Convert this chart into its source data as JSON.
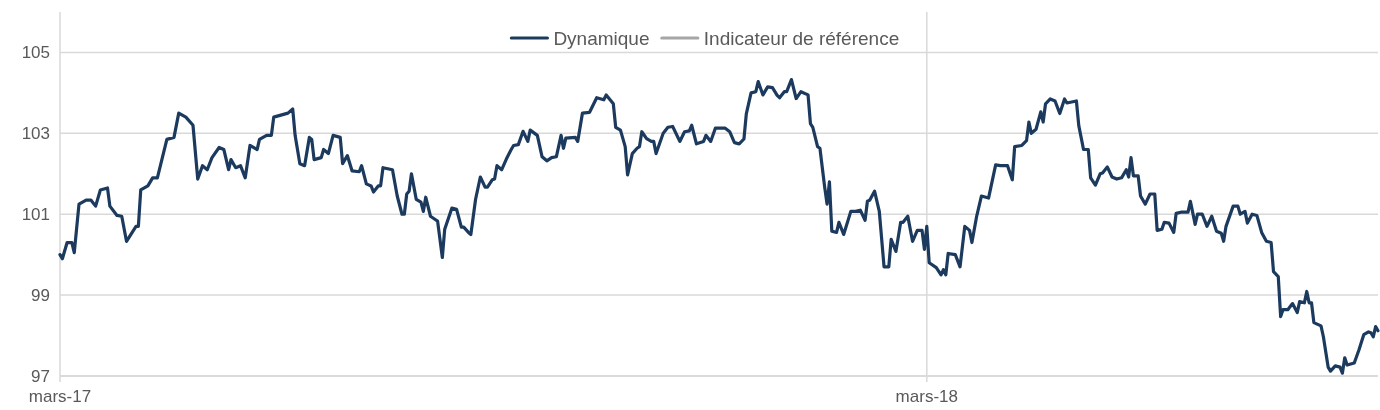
{
  "chart_data": {
    "type": "line",
    "xlim": [
      "2017-03-01",
      "2018-09-07"
    ],
    "xticks": [
      {
        "value": "2017-03-01",
        "label": "mars-17"
      },
      {
        "value": "2018-03-01",
        "label": "mars-18"
      }
    ],
    "ylim": [
      97,
      106
    ],
    "yticks": [
      97,
      99,
      101,
      103,
      105
    ],
    "grid": true,
    "legend": "top",
    "line_style": "solid",
    "marker": "none",
    "series": [
      {
        "name": "Dynamique",
        "color": "#1c3a5e",
        "x": [
          "2017-03-01",
          "2017-03-02",
          "2017-03-04",
          "2017-03-06",
          "2017-03-07",
          "2017-03-09",
          "2017-03-12",
          "2017-03-14",
          "2017-03-16",
          "2017-03-18",
          "2017-03-21",
          "2017-03-22",
          "2017-03-25",
          "2017-03-27",
          "2017-03-29",
          "2017-04-02",
          "2017-04-03",
          "2017-04-04",
          "2017-04-07",
          "2017-04-09",
          "2017-04-11",
          "2017-04-15",
          "2017-04-18",
          "2017-04-20",
          "2017-04-23",
          "2017-04-26",
          "2017-04-28",
          "2017-04-30",
          "2017-05-02",
          "2017-05-04",
          "2017-05-07",
          "2017-05-09",
          "2017-05-11",
          "2017-05-12",
          "2017-05-14",
          "2017-05-16",
          "2017-05-18",
          "2017-05-20",
          "2017-05-23",
          "2017-05-24",
          "2017-05-27",
          "2017-05-29",
          "2017-05-30",
          "2017-06-02",
          "2017-06-05",
          "2017-06-07",
          "2017-06-08",
          "2017-06-10",
          "2017-06-12",
          "2017-06-14",
          "2017-06-15",
          "2017-06-16",
          "2017-06-19",
          "2017-06-20",
          "2017-06-22",
          "2017-06-24",
          "2017-06-27",
          "2017-06-28",
          "2017-06-30",
          "2017-07-02",
          "2017-07-05",
          "2017-07-06",
          "2017-07-08",
          "2017-07-10",
          "2017-07-11",
          "2017-07-13",
          "2017-07-14",
          "2017-07-15",
          "2017-07-19",
          "2017-07-21",
          "2017-07-23",
          "2017-07-24",
          "2017-07-25",
          "2017-07-26",
          "2017-07-27",
          "2017-07-29",
          "2017-07-31",
          "2017-08-01",
          "2017-08-02",
          "2017-08-04",
          "2017-08-06",
          "2017-08-07",
          "2017-08-09",
          "2017-08-10",
          "2017-08-13",
          "2017-08-15",
          "2017-08-17",
          "2017-08-18",
          "2017-08-20",
          "2017-08-21",
          "2017-08-23",
          "2017-08-25",
          "2017-08-27",
          "2017-08-28",
          "2017-08-30",
          "2017-08-31",
          "2017-09-01",
          "2017-09-03",
          "2017-09-05",
          "2017-09-07",
          "2017-09-08",
          "2017-09-10",
          "2017-09-12",
          "2017-09-14",
          "2017-09-15",
          "2017-09-18",
          "2017-09-20",
          "2017-09-22",
          "2017-09-24",
          "2017-09-26",
          "2017-09-28",
          "2017-09-29",
          "2017-09-30",
          "2017-10-04",
          "2017-10-05",
          "2017-10-07",
          "2017-10-10",
          "2017-10-13",
          "2017-10-16",
          "2017-10-17",
          "2017-10-20",
          "2017-10-21",
          "2017-10-23",
          "2017-10-25",
          "2017-10-26",
          "2017-10-28",
          "2017-10-30",
          "2017-10-31",
          "2017-11-01",
          "2017-11-03",
          "2017-11-05",
          "2017-11-06",
          "2017-11-07",
          "2017-11-10",
          "2017-11-12",
          "2017-11-14",
          "2017-11-17",
          "2017-11-19",
          "2017-11-21",
          "2017-11-22",
          "2017-11-24",
          "2017-11-27",
          "2017-11-28",
          "2017-11-30",
          "2017-12-02",
          "2017-12-06",
          "2017-12-08",
          "2017-12-10",
          "2017-12-12",
          "2017-12-14",
          "2017-12-15",
          "2017-12-17",
          "2017-12-19",
          "2017-12-20",
          "2017-12-22",
          "2017-12-24",
          "2017-12-26",
          "2017-12-28",
          "2017-12-29",
          "2017-12-31",
          "2018-01-01",
          "2018-01-03",
          "2018-01-05",
          "2018-01-07",
          "2018-01-10",
          "2018-01-11",
          "2018-01-12",
          "2018-01-14",
          "2018-01-15",
          "2018-01-17",
          "2018-01-18",
          "2018-01-19",
          "2018-01-20",
          "2018-01-22",
          "2018-01-23",
          "2018-01-25",
          "2018-01-28",
          "2018-01-30",
          "2018-02-01",
          "2018-02-03",
          "2018-02-04",
          "2018-02-05",
          "2018-02-07",
          "2018-02-09",
          "2018-02-11",
          "2018-02-13",
          "2018-02-14",
          "2018-02-16",
          "2018-02-18",
          "2018-02-19",
          "2018-02-21",
          "2018-02-23",
          "2018-02-25",
          "2018-02-27",
          "2018-02-28",
          "2018-03-01",
          "2018-03-02",
          "2018-03-05",
          "2018-03-07",
          "2018-03-08",
          "2018-03-09",
          "2018-03-10",
          "2018-03-13",
          "2018-03-15",
          "2018-03-17",
          "2018-03-19",
          "2018-03-20",
          "2018-03-22",
          "2018-03-24",
          "2018-03-27",
          "2018-03-30",
          "2018-04-01",
          "2018-04-04",
          "2018-04-06",
          "2018-04-07",
          "2018-04-10",
          "2018-04-12",
          "2018-04-13",
          "2018-04-14",
          "2018-04-16",
          "2018-04-18",
          "2018-04-19",
          "2018-04-20",
          "2018-04-22",
          "2018-04-24",
          "2018-04-26",
          "2018-04-28",
          "2018-04-29",
          "2018-05-03",
          "2018-05-04",
          "2018-05-06",
          "2018-05-08",
          "2018-05-09",
          "2018-05-11",
          "2018-05-13",
          "2018-05-14",
          "2018-05-16",
          "2018-05-18",
          "2018-05-20",
          "2018-05-22",
          "2018-05-24",
          "2018-05-25",
          "2018-05-26",
          "2018-05-27",
          "2018-05-29",
          "2018-05-30",
          "2018-06-01",
          "2018-06-03",
          "2018-06-05",
          "2018-06-06",
          "2018-06-08",
          "2018-06-09",
          "2018-06-11",
          "2018-06-13",
          "2018-06-14",
          "2018-06-16",
          "2018-06-19",
          "2018-06-20",
          "2018-06-22",
          "2018-06-23",
          "2018-06-25",
          "2018-06-27",
          "2018-06-29",
          "2018-07-01",
          "2018-07-03",
          "2018-07-04",
          "2018-07-05",
          "2018-07-08",
          "2018-07-10",
          "2018-07-11",
          "2018-07-13",
          "2018-07-14",
          "2018-07-16",
          "2018-07-18",
          "2018-07-20",
          "2018-07-22",
          "2018-07-24",
          "2018-07-25",
          "2018-07-27",
          "2018-07-28",
          "2018-07-29",
          "2018-07-31",
          "2018-08-02",
          "2018-08-04",
          "2018-08-05",
          "2018-08-07",
          "2018-08-08",
          "2018-08-09",
          "2018-08-10",
          "2018-08-11",
          "2018-08-14",
          "2018-08-15",
          "2018-08-17",
          "2018-08-18",
          "2018-08-20",
          "2018-08-22",
          "2018-08-23",
          "2018-08-24",
          "2018-08-25",
          "2018-08-28",
          "2018-08-30",
          "2018-09-01",
          "2018-09-03",
          "2018-09-04",
          "2018-09-05",
          "2018-09-06",
          "2018-09-07"
        ],
        "values": [
          100.0,
          99.9,
          100.3,
          100.3,
          100.05,
          101.25,
          101.35,
          101.35,
          101.2,
          101.6,
          101.65,
          101.2,
          100.97,
          100.95,
          100.33,
          100.7,
          100.7,
          101.6,
          101.7,
          101.9,
          101.9,
          102.85,
          102.9,
          103.5,
          103.4,
          103.2,
          101.87,
          102.2,
          102.1,
          102.4,
          102.65,
          102.6,
          102.1,
          102.35,
          102.15,
          102.2,
          101.9,
          102.7,
          102.6,
          102.85,
          102.95,
          102.95,
          103.4,
          103.45,
          103.5,
          103.6,
          102.95,
          102.25,
          102.2,
          102.9,
          102.85,
          102.35,
          102.4,
          102.6,
          102.5,
          102.95,
          102.9,
          102.25,
          102.45,
          102.07,
          102.05,
          102.2,
          101.75,
          101.7,
          101.55,
          101.7,
          101.7,
          102.15,
          102.1,
          101.45,
          101.0,
          101.0,
          101.5,
          101.57,
          102.0,
          101.37,
          101.3,
          101.07,
          101.42,
          100.95,
          100.87,
          100.83,
          99.93,
          100.63,
          101.15,
          101.12,
          100.68,
          100.68,
          100.55,
          100.5,
          101.37,
          101.92,
          101.67,
          101.67,
          101.85,
          101.87,
          102.2,
          102.1,
          102.37,
          102.6,
          102.7,
          102.72,
          103.05,
          102.8,
          103.08,
          102.95,
          102.42,
          102.32,
          102.4,
          102.42,
          102.95,
          102.63,
          102.88,
          102.9,
          102.8,
          103.5,
          103.52,
          103.88,
          103.83,
          103.95,
          103.73,
          103.15,
          103.08,
          102.67,
          101.97,
          102.5,
          102.63,
          102.67,
          103.04,
          102.87,
          102.8,
          102.8,
          102.5,
          103.0,
          103.15,
          103.17,
          102.8,
          103.04,
          103.06,
          103.2,
          102.74,
          102.8,
          102.95,
          102.8,
          103.13,
          103.13,
          103.04,
          102.77,
          102.74,
          102.86,
          103.48,
          104.0,
          104.03,
          104.28,
          103.95,
          104.15,
          104.13,
          103.94,
          103.88,
          104.03,
          104.03,
          104.33,
          103.86,
          104.03,
          103.95,
          103.24,
          103.15,
          102.67,
          102.63,
          101.67,
          101.25,
          101.8,
          100.58,
          100.55,
          100.8,
          100.5,
          101.07,
          101.07,
          101.1,
          100.85,
          101.32,
          101.35,
          101.57,
          101.07,
          99.7,
          99.7,
          100.38,
          100.08,
          100.8,
          100.8,
          100.95,
          100.33,
          100.6,
          100.6,
          100.13,
          100.7,
          99.8,
          99.68,
          99.5,
          99.63,
          99.5,
          100.03,
          100.0,
          99.7,
          100.7,
          100.6,
          100.3,
          100.95,
          101.45,
          101.4,
          102.22,
          102.2,
          102.2,
          101.85,
          102.67,
          102.7,
          102.82,
          103.28,
          103.0,
          103.1,
          103.53,
          103.28,
          103.73,
          103.85,
          103.8,
          103.49,
          103.85,
          103.75,
          103.8,
          103.19,
          102.6,
          102.6,
          101.9,
          101.72,
          102.0,
          102.02,
          102.17,
          101.92,
          101.87,
          101.9,
          102.1,
          101.92,
          102.4,
          101.95,
          101.95,
          101.45,
          101.25,
          101.5,
          101.5,
          100.6,
          100.63,
          100.8,
          100.78,
          100.55,
          101.02,
          101.05,
          101.05,
          101.32,
          100.75,
          101.0,
          101.0,
          100.7,
          100.95,
          100.58,
          100.53,
          100.33,
          100.7,
          101.2,
          101.2,
          101.0,
          101.07,
          100.78,
          101.0,
          100.97,
          100.55,
          100.33,
          100.3,
          99.58,
          99.46,
          98.47,
          98.64,
          98.64,
          98.79,
          98.57,
          98.84,
          98.81,
          99.09,
          98.81,
          98.81,
          98.32,
          98.24,
          97.97,
          97.22,
          97.12,
          97.25,
          97.22,
          97.07,
          97.45,
          97.27,
          97.32,
          97.65,
          98.02,
          98.09,
          98.07,
          97.97,
          98.22,
          98.12
        ]
      },
      {
        "name": "Indicateur de référence",
        "color": "#a6a6a6"
      }
    ]
  }
}
